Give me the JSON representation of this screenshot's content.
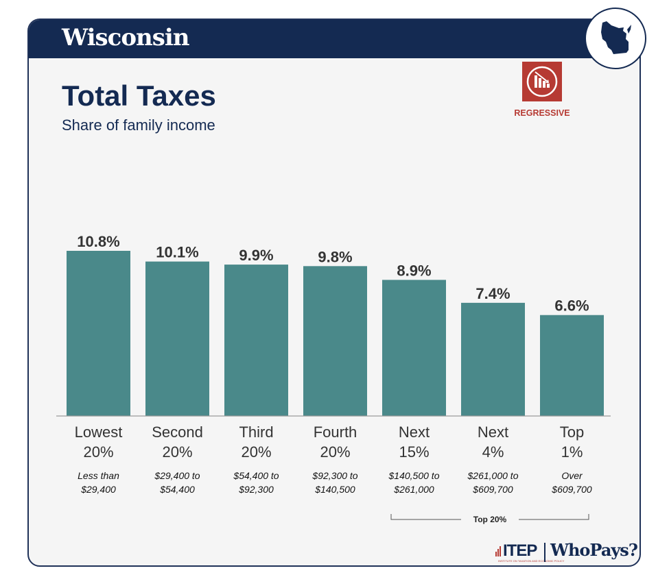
{
  "header": {
    "state": "Wisconsin",
    "map_icon": "wisconsin-map-icon"
  },
  "title": "Total Taxes",
  "subtitle": "Share of family income",
  "status": {
    "label": "REGRESSIVE",
    "icon": "regressive-chart-icon",
    "color": "#b63a33"
  },
  "colors": {
    "bar": "#4a898a",
    "navy": "#142a52",
    "red": "#b63a33"
  },
  "chart_data": {
    "type": "bar",
    "categories": [
      {
        "name": "Lowest",
        "pct": "20%",
        "range_line1": "Less than",
        "range_line2": "$29,400"
      },
      {
        "name": "Second",
        "pct": "20%",
        "range_line1": "$29,400 to",
        "range_line2": "$54,400"
      },
      {
        "name": "Third",
        "pct": "20%",
        "range_line1": "$54,400 to",
        "range_line2": "$92,300"
      },
      {
        "name": "Fourth",
        "pct": "20%",
        "range_line1": "$92,300 to",
        "range_line2": "$140,500"
      },
      {
        "name": "Next",
        "pct": "15%",
        "range_line1": "$140,500 to",
        "range_line2": "$261,000"
      },
      {
        "name": "Next",
        "pct": "4%",
        "range_line1": "$261,000 to",
        "range_line2": "$609,700"
      },
      {
        "name": "Top",
        "pct": "1%",
        "range_line1": "Over",
        "range_line2": "$609,700"
      }
    ],
    "values": [
      10.8,
      10.1,
      9.9,
      9.8,
      8.9,
      7.4,
      6.6
    ],
    "value_labels": [
      "10.8%",
      "10.1%",
      "9.9%",
      "9.8%",
      "8.9%",
      "7.4%",
      "6.6%"
    ],
    "ylim": [
      0,
      10.8
    ],
    "grid": false,
    "bracket_label": "Top 20%"
  },
  "footer": {
    "org": "ITEP",
    "org_sub": "INSTITUTE ON TAXATION AND ECONOMIC POLICY",
    "brand": "WhoPays?"
  }
}
